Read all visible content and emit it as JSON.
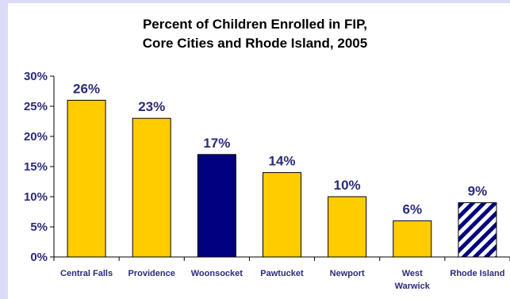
{
  "chart_data": {
    "type": "bar",
    "title_lines": [
      "Percent of Children Enrolled in FIP,",
      "Core Cities and Rhode Island, 2005"
    ],
    "categories": [
      [
        "Central Falls"
      ],
      [
        "Providence"
      ],
      [
        "Woonsocket"
      ],
      [
        "Pawtucket"
      ],
      [
        "Newport"
      ],
      [
        "West",
        "Warwick"
      ],
      [
        "Rhode Island"
      ]
    ],
    "values": [
      26,
      23,
      17,
      14,
      10,
      6,
      9
    ],
    "data_labels": [
      "26%",
      "23%",
      "17%",
      "14%",
      "10%",
      "6%",
      "9%"
    ],
    "bar_styles": [
      "gold",
      "gold",
      "navy",
      "gold",
      "gold",
      "gold",
      "striped"
    ],
    "ylim": [
      0,
      30
    ],
    "yticks": [
      0,
      5,
      10,
      15,
      20,
      25,
      30
    ],
    "ytick_labels": [
      "0%",
      "5%",
      "10%",
      "15%",
      "20%",
      "25%",
      "30%"
    ],
    "xlabel": "",
    "ylabel": "",
    "grid": false,
    "legend": false,
    "colors": {
      "gold": "#ffcc00",
      "navy": "#000080",
      "text": "#2b2b7a",
      "frame": "#dcdcf8"
    }
  }
}
